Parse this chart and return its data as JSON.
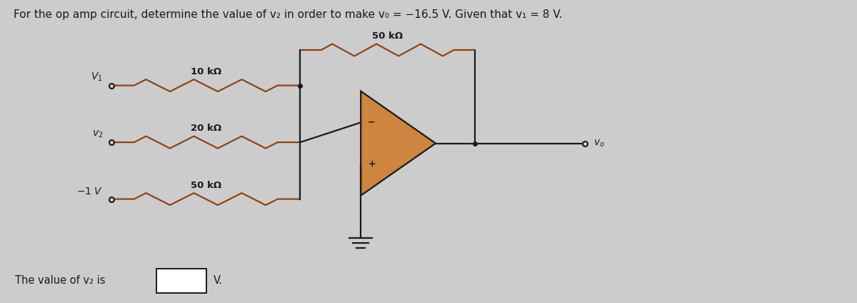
{
  "title": "For the op amp circuit, determine the value of v₂ in order to make v₀ = −16.5 V. Given that v₁ = 8 V.",
  "background_color": "#cccccc",
  "circuit_color": "#1a1a1a",
  "resistor_color": "#8B4513",
  "opamp_fill": "#CD853F",
  "opamp_edge": "#1a1a1a",
  "footer_text": "The value of v₂ is",
  "footer_unit": "V.",
  "v1_label": "V₁",
  "v2_label": "v₂",
  "vm1_label": "−1 V",
  "vo_label": "v₀",
  "R1_label": "10 kΩ",
  "R2_label": "20 kΩ",
  "R3_label": "50 kΩ",
  "Rf_label": "50 kΩ"
}
